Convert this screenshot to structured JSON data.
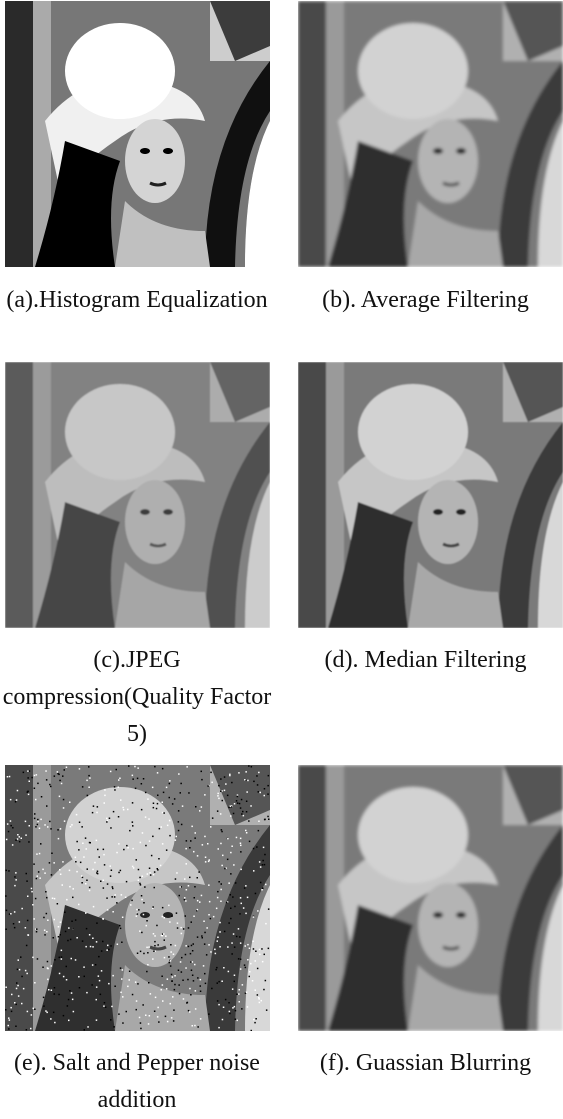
{
  "figure": {
    "panels": [
      {
        "caption": "(a).Histogram Equalization"
      },
      {
        "caption": "(b). Average Filtering"
      },
      {
        "caption": "(c).JPEG compression(Quality Factor 5)"
      },
      {
        "caption": "(d). Median Filtering"
      },
      {
        "caption": "(e). Salt and Pepper noise addition"
      },
      {
        "caption": "(f). Guassian Blurring"
      }
    ]
  }
}
